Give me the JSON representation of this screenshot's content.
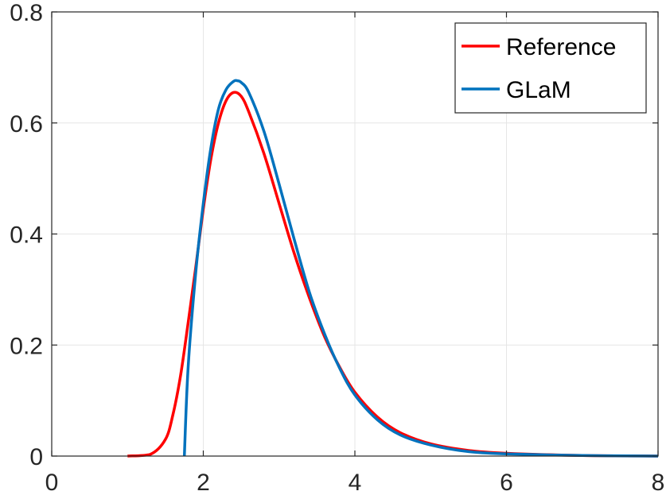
{
  "chart_data": {
    "type": "line",
    "title": "",
    "xlabel": "",
    "ylabel": "",
    "xlim": [
      0,
      8
    ],
    "ylim": [
      0,
      0.8
    ],
    "xticks": [
      0,
      2,
      4,
      6,
      8
    ],
    "xtick_labels": [
      "0",
      "2",
      "4",
      "6",
      "8"
    ],
    "yticks": [
      0,
      0.2,
      0.4,
      0.6,
      0.8
    ],
    "ytick_labels": [
      "0",
      "0.2",
      "0.4",
      "0.6",
      "0.8"
    ],
    "grid": true,
    "legend": {
      "position": "top-right",
      "entries": [
        "Reference",
        "GLaM"
      ]
    },
    "series": [
      {
        "name": "Reference",
        "color": "#ff0000",
        "x": [
          1.0,
          1.3,
          1.5,
          1.6,
          1.7,
          1.8,
          1.9,
          2.0,
          2.1,
          2.2,
          2.3,
          2.4,
          2.5,
          2.6,
          2.8,
          3.0,
          3.2,
          3.4,
          3.6,
          3.8,
          4.0,
          4.3,
          4.6,
          5.0,
          5.5,
          6.0,
          7.0,
          8.0
        ],
        "y": [
          0.0,
          0.003,
          0.03,
          0.075,
          0.145,
          0.24,
          0.34,
          0.445,
          0.535,
          0.6,
          0.64,
          0.655,
          0.648,
          0.62,
          0.545,
          0.455,
          0.365,
          0.285,
          0.215,
          0.16,
          0.115,
          0.07,
          0.042,
          0.022,
          0.01,
          0.005,
          0.001,
          0.0
        ]
      },
      {
        "name": "GLaM",
        "color": "#0072bd",
        "x": [
          1.75,
          1.8,
          1.9,
          2.0,
          2.1,
          2.2,
          2.3,
          2.4,
          2.45,
          2.5,
          2.6,
          2.8,
          3.0,
          3.2,
          3.4,
          3.6,
          3.8,
          4.0,
          4.3,
          4.6,
          5.0,
          5.5,
          6.0,
          7.0,
          8.0
        ],
        "y": [
          0.0,
          0.16,
          0.33,
          0.455,
          0.555,
          0.625,
          0.66,
          0.675,
          0.676,
          0.673,
          0.655,
          0.585,
          0.49,
          0.39,
          0.295,
          0.22,
          0.158,
          0.11,
          0.065,
          0.038,
          0.02,
          0.008,
          0.004,
          0.001,
          0.0
        ]
      }
    ]
  }
}
